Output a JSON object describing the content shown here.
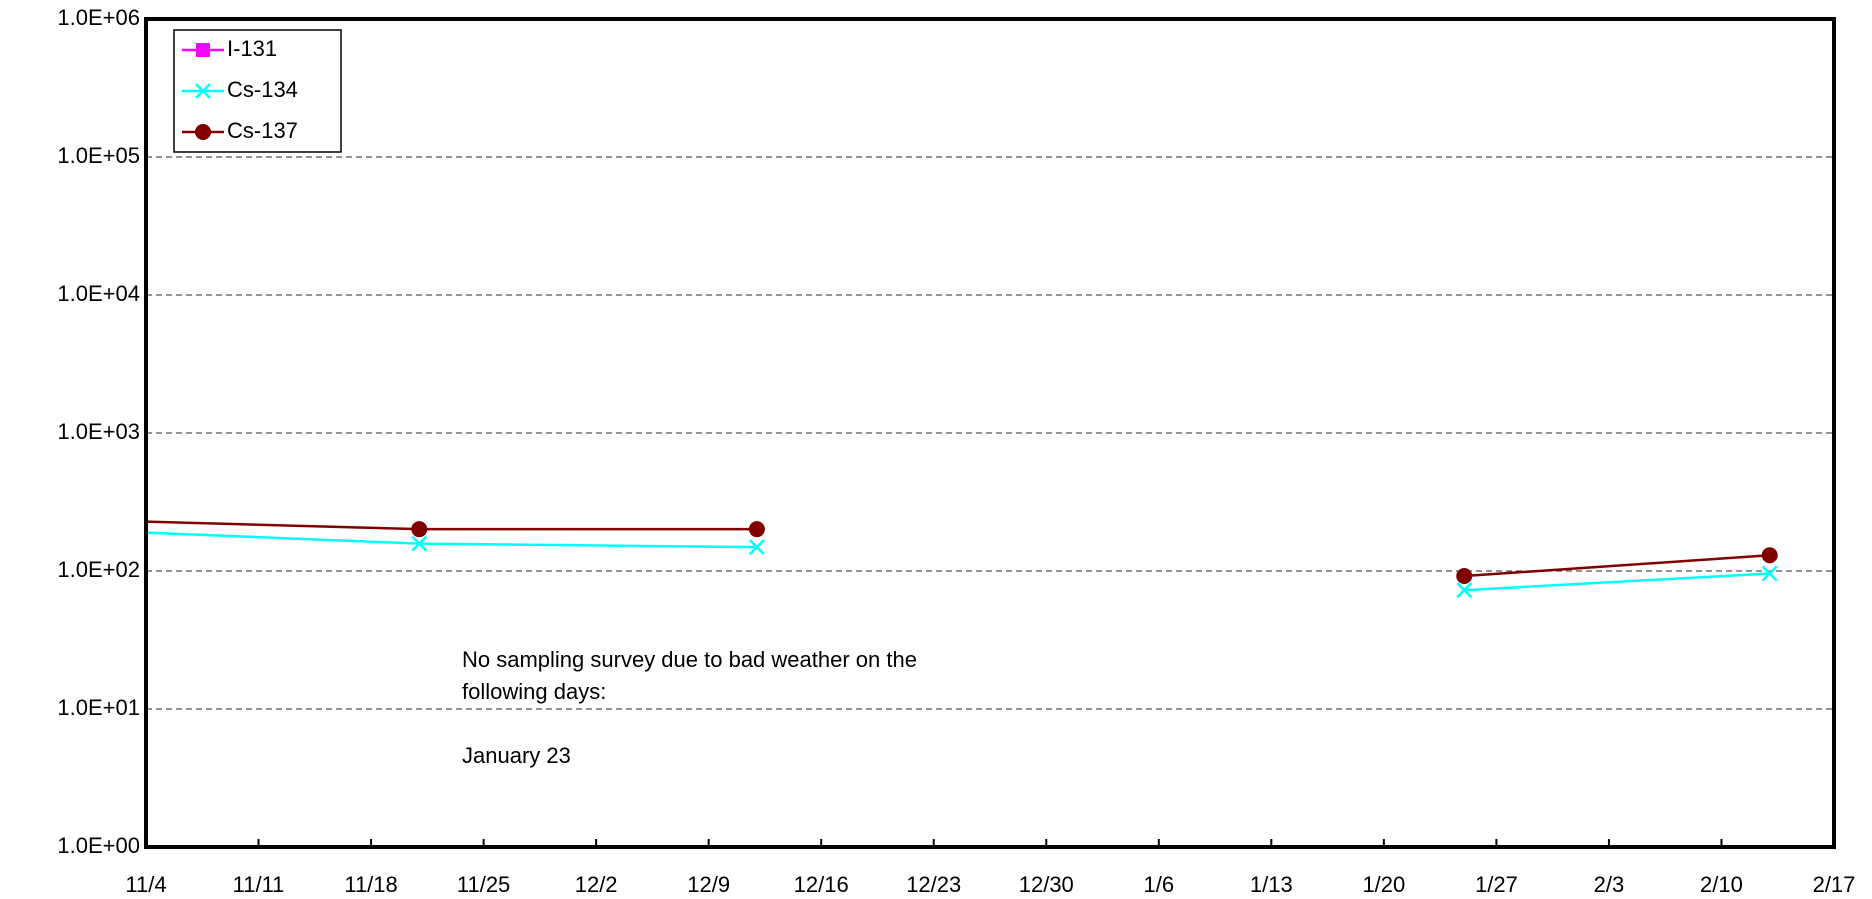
{
  "chart_data": {
    "type": "line",
    "x": [
      -4,
      17,
      38,
      80,
      82,
      101
    ],
    "series": [
      {
        "name": "I-131",
        "color": "#ff00ff",
        "marker": "square",
        "values": [
          null,
          null,
          null,
          null,
          null,
          null
        ]
      },
      {
        "name": "Cs-134",
        "color": "#00ffff",
        "marker": "x",
        "values": [
          198,
          158,
          149,
          null,
          72.6,
          96
        ]
      },
      {
        "name": "Cs-137",
        "color": "#800000",
        "marker": "circle",
        "values": [
          235,
          201,
          201,
          null,
          92,
          130
        ]
      }
    ],
    "xlim": [
      0,
      105
    ],
    "xticks": [
      {
        "value": 0,
        "label": "11/4"
      },
      {
        "value": 7,
        "label": "11/11"
      },
      {
        "value": 14,
        "label": "11/18"
      },
      {
        "value": 21,
        "label": "11/25"
      },
      {
        "value": 28,
        "label": "12/2"
      },
      {
        "value": 35,
        "label": "12/9"
      },
      {
        "value": 42,
        "label": "12/16"
      },
      {
        "value": 49,
        "label": "12/23"
      },
      {
        "value": 56,
        "label": "12/30"
      },
      {
        "value": 63,
        "label": "1/6"
      },
      {
        "value": 70,
        "label": "1/13"
      },
      {
        "value": 77,
        "label": "1/20"
      },
      {
        "value": 84,
        "label": "1/27"
      },
      {
        "value": 91,
        "label": "2/3"
      },
      {
        "value": 98,
        "label": "2/10"
      },
      {
        "value": 105,
        "label": "2/17"
      }
    ],
    "ylim": [
      1,
      1000000
    ],
    "yticks": [
      {
        "value": 1,
        "label": "1.0E+00"
      },
      {
        "value": 10,
        "label": "1.0E+01"
      },
      {
        "value": 100,
        "label": "1.0E+02"
      },
      {
        "value": 1000,
        "label": "1.0E+03"
      },
      {
        "value": 10000,
        "label": "1.0E+04"
      },
      {
        "value": 100000,
        "label": "1.0E+05"
      },
      {
        "value": 1000000,
        "label": "1.0E+06"
      }
    ],
    "log_y": true,
    "grid": true,
    "legend": "top-left",
    "annotation": [
      "No sampling survey due to bad weather on the",
      "following days:",
      "",
      "January 23"
    ]
  }
}
